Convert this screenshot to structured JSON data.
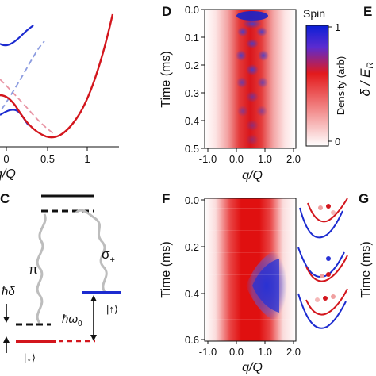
{
  "panels": {
    "D": "D",
    "E": "E",
    "F": "F",
    "G": "G",
    "C": "C"
  },
  "panel_B_partial": {
    "xlabel_visible": "q/Q",
    "x_ticks": [
      "0",
      "0.5",
      "1"
    ]
  },
  "panel_C": {
    "pi": "π",
    "sigma_plus": "σ",
    "sigma_plus_sub": "+",
    "hbar_delta": "ħδ",
    "hbar_omega0": "ħω",
    "omega_sub": "0",
    "ket_up": "|↑⟩",
    "ket_down": "|↓⟩"
  },
  "panel_D": {
    "ylabel": "Time (ms)",
    "xlabel": "q/Q",
    "y_ticks": [
      "0.0",
      "0.1",
      "0.2",
      "0.3",
      "0.4",
      "0.5"
    ],
    "x_ticks": [
      "-1.0",
      "0.0",
      "1.0",
      "2.0"
    ]
  },
  "colorbar": {
    "title": "Spin",
    "label": "Density (arb)",
    "ticks": [
      "1",
      "0"
    ],
    "colors": {
      "top": "#0b1fd6",
      "mid": "#e31a1c",
      "bottom": "#ffffff"
    }
  },
  "panel_E": {
    "ylabel": "δ / E",
    "ylabel_sub": "R"
  },
  "panel_F": {
    "ylabel": "Time (ms)",
    "xlabel": "q/Q",
    "y_ticks": [
      "0.0",
      "0.2",
      "0.4",
      "0.6"
    ],
    "x_ticks": [
      "-1.0",
      "0.0",
      "1.0",
      "2.0"
    ]
  },
  "panel_G": {
    "ylabel": "Time (ms)"
  },
  "chart_data": [
    {
      "type": "heatmap",
      "panel": "D",
      "xlabel": "q/Q",
      "ylabel": "Time (ms)",
      "xlim": [
        -1.0,
        2.0
      ],
      "ylim": [
        0.0,
        0.5
      ],
      "colorbar": {
        "title": "Spin",
        "label": "Density (arb)",
        "range": [
          0,
          1
        ]
      }
    },
    {
      "type": "heatmap",
      "panel": "F",
      "xlabel": "q/Q",
      "ylabel": "Time (ms)",
      "xlim": [
        -1.0,
        2.0
      ],
      "ylim": [
        0.0,
        0.6
      ]
    }
  ]
}
